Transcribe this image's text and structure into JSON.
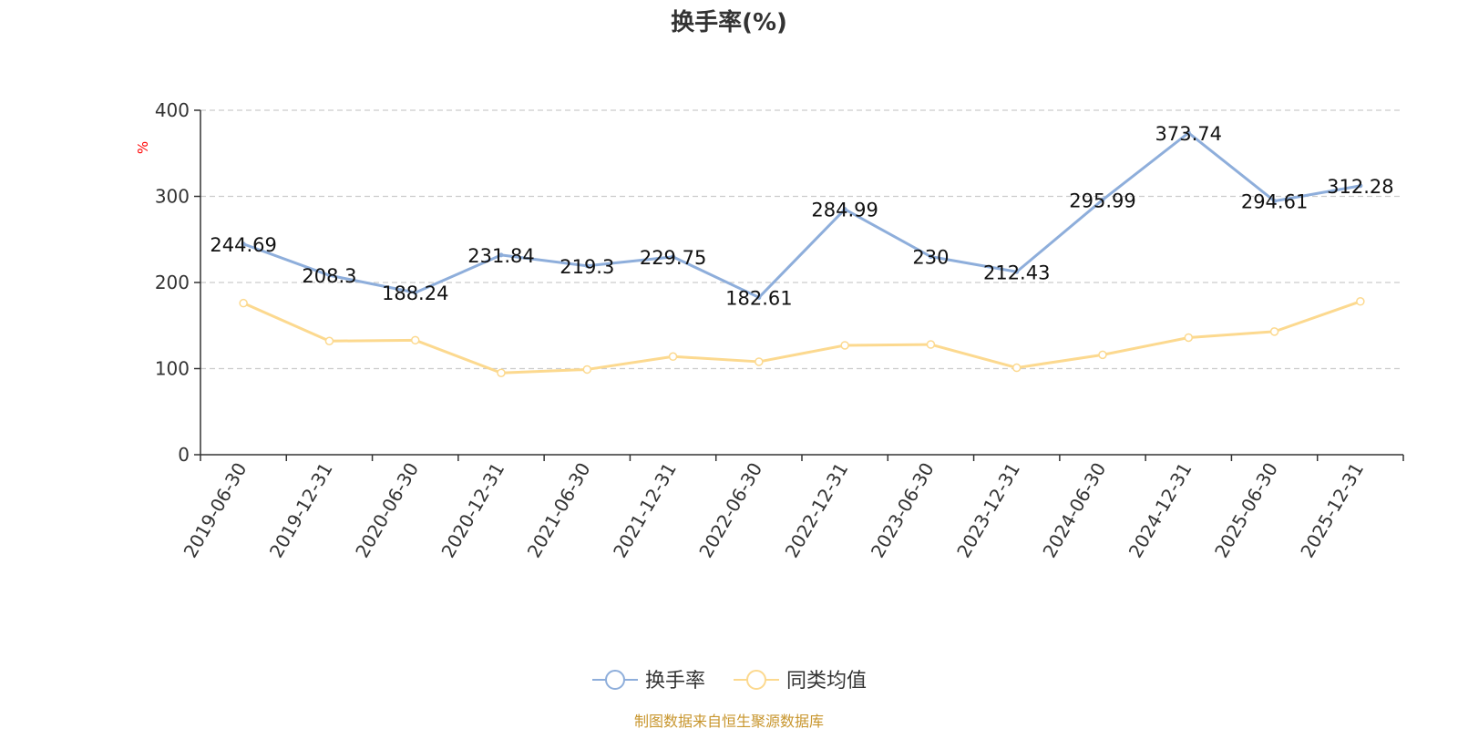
{
  "chart_data": {
    "type": "line",
    "title": "换手率(%)",
    "ylabel": "%",
    "ylim": [
      0,
      400
    ],
    "yticks": [
      0,
      100,
      200,
      300,
      400
    ],
    "grid": true,
    "legend_position": "bottom-center",
    "categories": [
      "2019-06-30",
      "2019-12-31",
      "2020-06-30",
      "2020-12-31",
      "2021-06-30",
      "2021-12-31",
      "2022-06-30",
      "2022-12-31",
      "2023-06-30",
      "2023-12-31",
      "2024-06-30",
      "2024-12-31",
      "2025-06-30",
      "2025-12-31"
    ],
    "series": [
      {
        "name": "换手率",
        "color": "#8eaedb",
        "values": [
          244.69,
          208.3,
          188.24,
          231.84,
          219.3,
          229.75,
          182.61,
          284.99,
          230,
          212.43,
          295.99,
          373.74,
          294.61,
          312.28
        ],
        "labels": [
          "244.69",
          "208.3",
          "188.24",
          "231.84",
          "219.3",
          "229.75",
          "182.61",
          "284.99",
          "230",
          "212.43",
          "295.99",
          "373.74",
          "294.61",
          "312.28"
        ]
      },
      {
        "name": "同类均值",
        "color": "#fcd98f",
        "values": [
          176,
          132,
          133,
          95,
          99,
          114,
          108,
          127,
          128,
          101,
          116,
          136,
          143,
          178
        ]
      }
    ]
  },
  "footer": {
    "source": "制图数据来自恒生聚源数据库",
    "color": "#c8962e"
  }
}
